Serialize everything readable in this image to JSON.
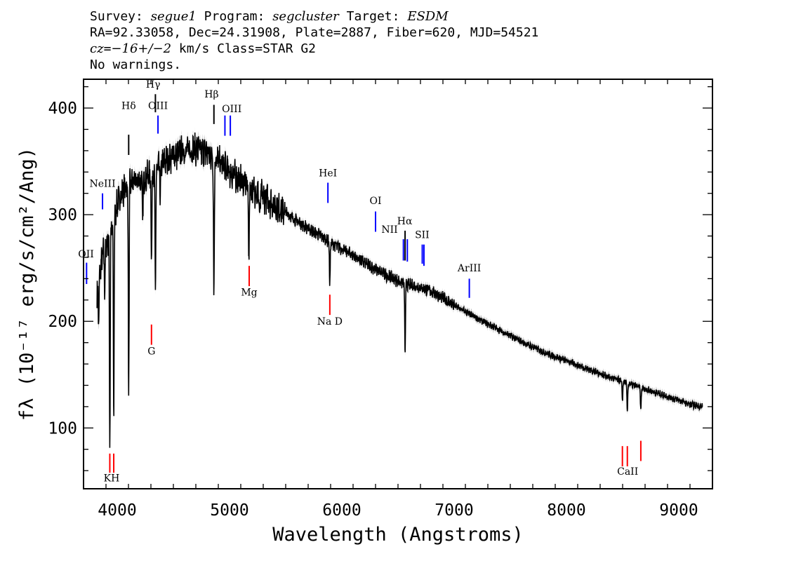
{
  "header": {
    "survey_label": "Survey: ",
    "survey_value": "segue1",
    "program_label": " Program: ",
    "program_value": "segcluster",
    "target_label": " Target: ",
    "target_value": "ESDM",
    "line2": "RA=92.33058, Dec=24.31908, Plate=2887, Fiber=620, MJD=54521",
    "cz_label": "cz",
    "cz_eq": "=",
    "cz_value": "−16+/−2",
    "cz_rest": " km/s Class=STAR G2",
    "warnings": "No warnings."
  },
  "chart_data": {
    "type": "line",
    "xlabel": "Wavelength (Angstroms)",
    "ylabel": "fλ (10⁻¹⁷ erg/s/cm²/Ang)",
    "xlim": [
      3700,
      9300
    ],
    "ylim": [
      43,
      427
    ],
    "x_ticks": [
      4000,
      5000,
      6000,
      7000,
      8000,
      9000
    ],
    "y_ticks": [
      100,
      200,
      300,
      400
    ],
    "grid": false,
    "colors": {
      "spectrum": "#000000",
      "error": "#b0b0b0",
      "emission": "#0000ff",
      "absorption": "#ff0000",
      "balmer": "#000000"
    },
    "spectrum_continuum": {
      "x": [
        3820,
        3850,
        3870,
        3900,
        3950,
        4000,
        4050,
        4100,
        4150,
        4200,
        4300,
        4400,
        4500,
        4600,
        4700,
        4800,
        4900,
        5000,
        5100,
        5200,
        5300,
        5400,
        5500,
        5600,
        5700,
        5800,
        5900,
        6000,
        6100,
        6200,
        6300,
        6400,
        6500,
        6600,
        6700,
        6800,
        6900,
        7000,
        7200,
        7400,
        7600,
        7800,
        8000,
        8200,
        8400,
        8600,
        8800,
        9000,
        9100,
        9210
      ],
      "y": [
        225,
        248,
        262,
        272,
        285,
        310,
        322,
        328,
        330,
        332,
        338,
        347,
        356,
        360,
        361,
        358,
        350,
        340,
        332,
        324,
        317,
        309,
        302,
        294,
        287,
        281,
        274,
        268,
        262,
        255,
        249,
        243,
        238,
        234,
        232,
        228,
        222,
        215,
        203,
        192,
        181,
        171,
        163,
        155,
        147,
        140,
        133,
        126,
        122,
        120
      ]
    },
    "absorption_features": [
      {
        "x": 3835,
        "depth": 40
      },
      {
        "x": 3889,
        "depth": 40
      },
      {
        "x": 3934,
        "depth": 190
      },
      {
        "x": 3969,
        "depth": 180
      },
      {
        "x": 4102,
        "depth": 200
      },
      {
        "x": 4227,
        "depth": 40
      },
      {
        "x": 4305,
        "depth": 80
      },
      {
        "x": 4340,
        "depth": 120
      },
      {
        "x": 4383,
        "depth": 30
      },
      {
        "x": 4861,
        "depth": 130
      },
      {
        "x": 5172,
        "depth": 70
      },
      {
        "x": 5269,
        "depth": 25
      },
      {
        "x": 5893,
        "depth": 40
      },
      {
        "x": 6563,
        "depth": 65
      },
      {
        "x": 8498,
        "depth": 18
      },
      {
        "x": 8542,
        "depth": 28
      },
      {
        "x": 8662,
        "depth": 22
      }
    ],
    "emission_lines": [
      {
        "label": "NeIII",
        "x": 3869,
        "top": 320,
        "bottom": 305,
        "tx": 3869,
        "ty": 326
      },
      {
        "label": "OII",
        "x": 3727,
        "top": 255,
        "bottom": 235,
        "tx": 3722,
        "ty": 260
      },
      {
        "label": "OIII",
        "x": 4363,
        "top": 393,
        "bottom": 376,
        "tx": 4363,
        "ty": 399
      },
      {
        "label": "OIII",
        "x": 4959,
        "top": 393,
        "bottom": 374,
        "tx": 5020,
        "ty": 396
      },
      {
        "label": "OIII",
        "x": 5007,
        "top": 393,
        "bottom": 374,
        "tx": "",
        "ty": ""
      },
      {
        "label": "HeI",
        "x": 5876,
        "top": 330,
        "bottom": 311,
        "tx": 5876,
        "ty": 336
      },
      {
        "label": "OI",
        "x": 6300,
        "top": 303,
        "bottom": 284,
        "tx": 6300,
        "ty": 310
      },
      {
        "label": "NII",
        "x": 6548,
        "top": 277,
        "bottom": 257,
        "tx": 6425,
        "ty": 283
      },
      {
        "label": "NII",
        "x": 6583,
        "top": 277,
        "bottom": 256,
        "tx": "",
        "ty": ""
      },
      {
        "label": "SII",
        "x": 6716,
        "top": 272,
        "bottom": 254,
        "tx": 6715,
        "ty": 278
      },
      {
        "label": "SII",
        "x": 6731,
        "top": 272,
        "bottom": 252,
        "tx": "",
        "ty": ""
      },
      {
        "label": "ArIII",
        "x": 7135,
        "top": 240,
        "bottom": 222,
        "tx": 7135,
        "ty": 247
      }
    ],
    "balmer_lines": [
      {
        "label": "Hδ",
        "x": 4102,
        "top": 375,
        "bottom": 356,
        "tx": 4102,
        "ty": 399
      },
      {
        "label": "Hγ",
        "x": 4340,
        "top": 413,
        "bottom": 396,
        "tx": 4320,
        "ty": 419
      },
      {
        "label": "Hβ",
        "x": 4861,
        "top": 403,
        "bottom": 385,
        "tx": 4840,
        "ty": 410
      },
      {
        "label": "Hα",
        "x": 6563,
        "top": 285,
        "bottom": 257,
        "tx": 6560,
        "ty": 291
      }
    ],
    "absorption_marks": [
      {
        "label": "KH",
        "x": 3934,
        "top": 76,
        "bottom": 58,
        "tx": 3950,
        "ty": 50
      },
      {
        "label": "",
        "x": 3969,
        "top": 76,
        "bottom": 58,
        "tx": "",
        "ty": ""
      },
      {
        "label": "G",
        "x": 4305,
        "top": 197,
        "bottom": 178,
        "tx": 4305,
        "ty": 169
      },
      {
        "label": "Mg",
        "x": 5175,
        "top": 252,
        "bottom": 233,
        "tx": 5175,
        "ty": 224
      },
      {
        "label": "Na D",
        "x": 5893,
        "top": 225,
        "bottom": 206,
        "tx": 5893,
        "ty": 197
      },
      {
        "label": "CaII",
        "x": 8498,
        "top": 83,
        "bottom": 64,
        "tx": 8545,
        "ty": 56
      },
      {
        "label": "",
        "x": 8542,
        "top": 83,
        "bottom": 64,
        "tx": "",
        "ty": ""
      },
      {
        "label": "",
        "x": 8662,
        "top": 88,
        "bottom": 69,
        "tx": "",
        "ty": ""
      }
    ]
  }
}
